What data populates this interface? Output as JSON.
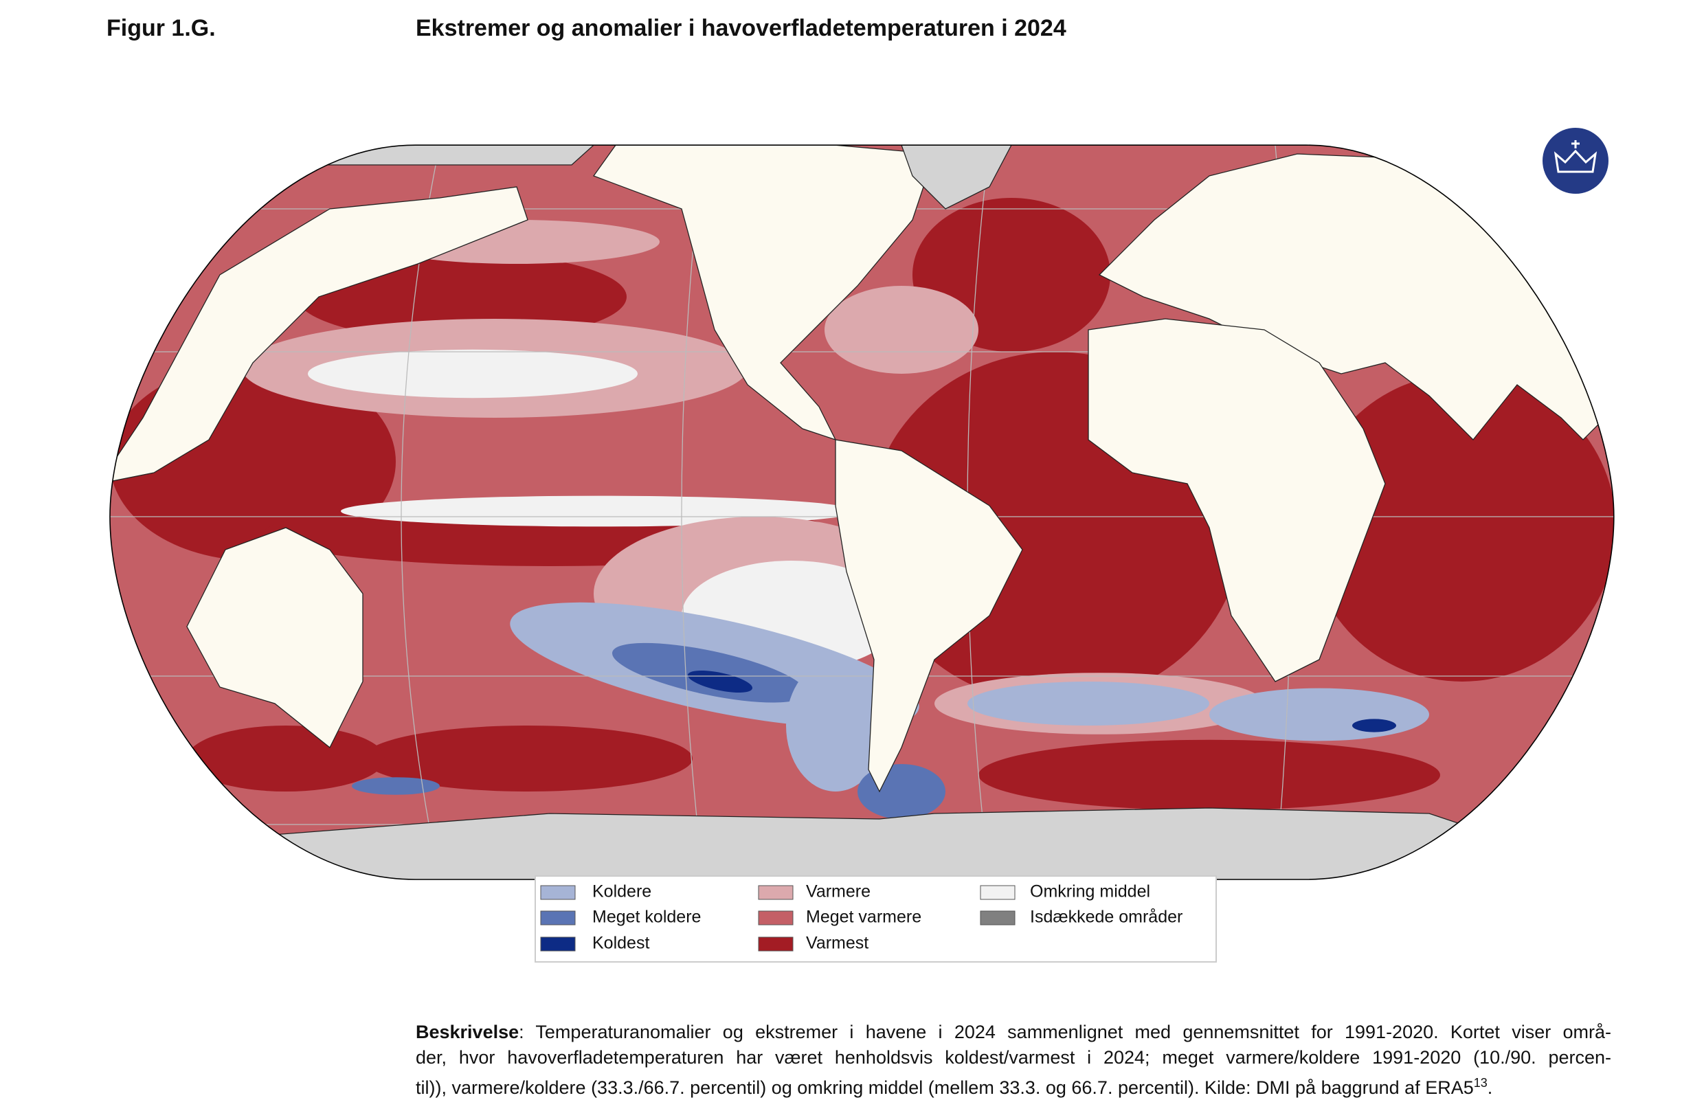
{
  "header": {
    "label": "Figur 1.G.",
    "title": "Ekstremer og anomalier i havoverfladetemperaturen i 2024"
  },
  "legend": {
    "items": [
      {
        "label": "Koldere",
        "color": "#a6b4d6"
      },
      {
        "label": "Meget koldere",
        "color": "#5a74b4"
      },
      {
        "label": "Koldest",
        "color": "#0d2b85"
      },
      {
        "label": "Varmere",
        "color": "#dca9ad"
      },
      {
        "label": "Meget varmere",
        "color": "#c45f66"
      },
      {
        "label": "Varmest",
        "color": "#a31c24"
      },
      {
        "label": "Omkring middel",
        "color": "#f2f2f2"
      },
      {
        "label": "Isdækkede områder",
        "color": "#808080"
      }
    ]
  },
  "description": {
    "label": "Beskrivelse",
    "lines": [
      ": Temperaturanomalier og ekstremer i havene i 2024 sammenlignet med gennemsnittet for 1991-2020. Kortet viser områ-",
      "der, hvor havoverfladetemperaturen har været henholdsvis koldest/varmest i 2024; meget varmere/koldere 1991-2020 (10./90. percen-",
      "til)), varmere/koldere (33.3./66.7. percentil) og omkring middel (mellem 33.3. og 66.7. percentil). Kilde: DMI på baggrund af ERA5"
    ],
    "superscript": "13",
    "end": "."
  }
}
